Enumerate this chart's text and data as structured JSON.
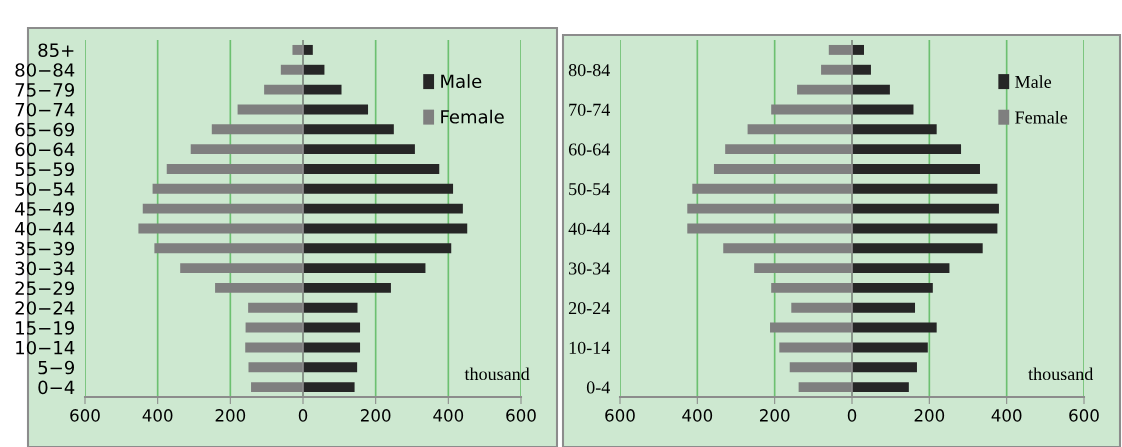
{
  "chart_data": [
    {
      "type": "bar",
      "orientation": "horizontal",
      "categories": [
        "85+",
        "80−84",
        "75−79",
        "70−74",
        "65−69",
        "60−64",
        "55−59",
        "50−54",
        "45−49",
        "40−44",
        "35−39",
        "30−34",
        "25−29",
        "20−24",
        "15−19",
        "10−14",
        "5−9",
        "0−4"
      ],
      "series": [
        {
          "name": "Male",
          "color": "#262626",
          "values": [
            27,
            59,
            106,
            179,
            250,
            308,
            375,
            413,
            440,
            452,
            408,
            337,
            242,
            150,
            157,
            157,
            149,
            142
          ]
        },
        {
          "name": "Female",
          "color": "#7f7f7f",
          "values": [
            -29,
            -61,
            -107,
            -180,
            -251,
            -309,
            -375,
            -414,
            -441,
            -453,
            -409,
            -338,
            -242,
            -151,
            -158,
            -159,
            -150,
            -143
          ]
        }
      ],
      "xlim": [
        -600,
        600
      ],
      "xticks": [
        {
          "value": -600,
          "label": "600"
        },
        {
          "value": -400,
          "label": "400"
        },
        {
          "value": -200,
          "label": "200"
        },
        0,
        200,
        400,
        600
      ],
      "stacked": true,
      "grid": "x",
      "legend": "top right",
      "annotations": [
        "thousand"
      ]
    },
    {
      "type": "bar",
      "orientation": "horizontal",
      "categories": [
        null,
        "80-84",
        null,
        "70-74",
        null,
        "60-64",
        null,
        "50-54",
        null,
        "40-44",
        null,
        "30-34",
        null,
        "20-24",
        null,
        "10-14",
        null,
        "0-4"
      ],
      "series": [
        {
          "name": "Male",
          "color": "#262626",
          "values": [
            31,
            49,
            98,
            159,
            219,
            282,
            331,
            376,
            380,
            376,
            338,
            252,
            209,
            163,
            219,
            196,
            168,
            147
          ]
        },
        {
          "name": "Female",
          "color": "#7f7f7f",
          "values": [
            -60,
            -80,
            -142,
            -209,
            -270,
            -328,
            -357,
            -413,
            -426,
            -426,
            -333,
            -253,
            -209,
            -157,
            -212,
            -188,
            -161,
            -138
          ]
        }
      ],
      "xlim": [
        -600,
        600
      ],
      "xticks": [
        {
          "value": -600,
          "label": "600"
        },
        {
          "value": -400,
          "label": "400"
        },
        {
          "value": -200,
          "label": "200"
        },
        0,
        200,
        400,
        600
      ],
      "stacked": true,
      "grid": "x",
      "legend": "top right",
      "annotations": [
        "thousand"
      ]
    }
  ]
}
